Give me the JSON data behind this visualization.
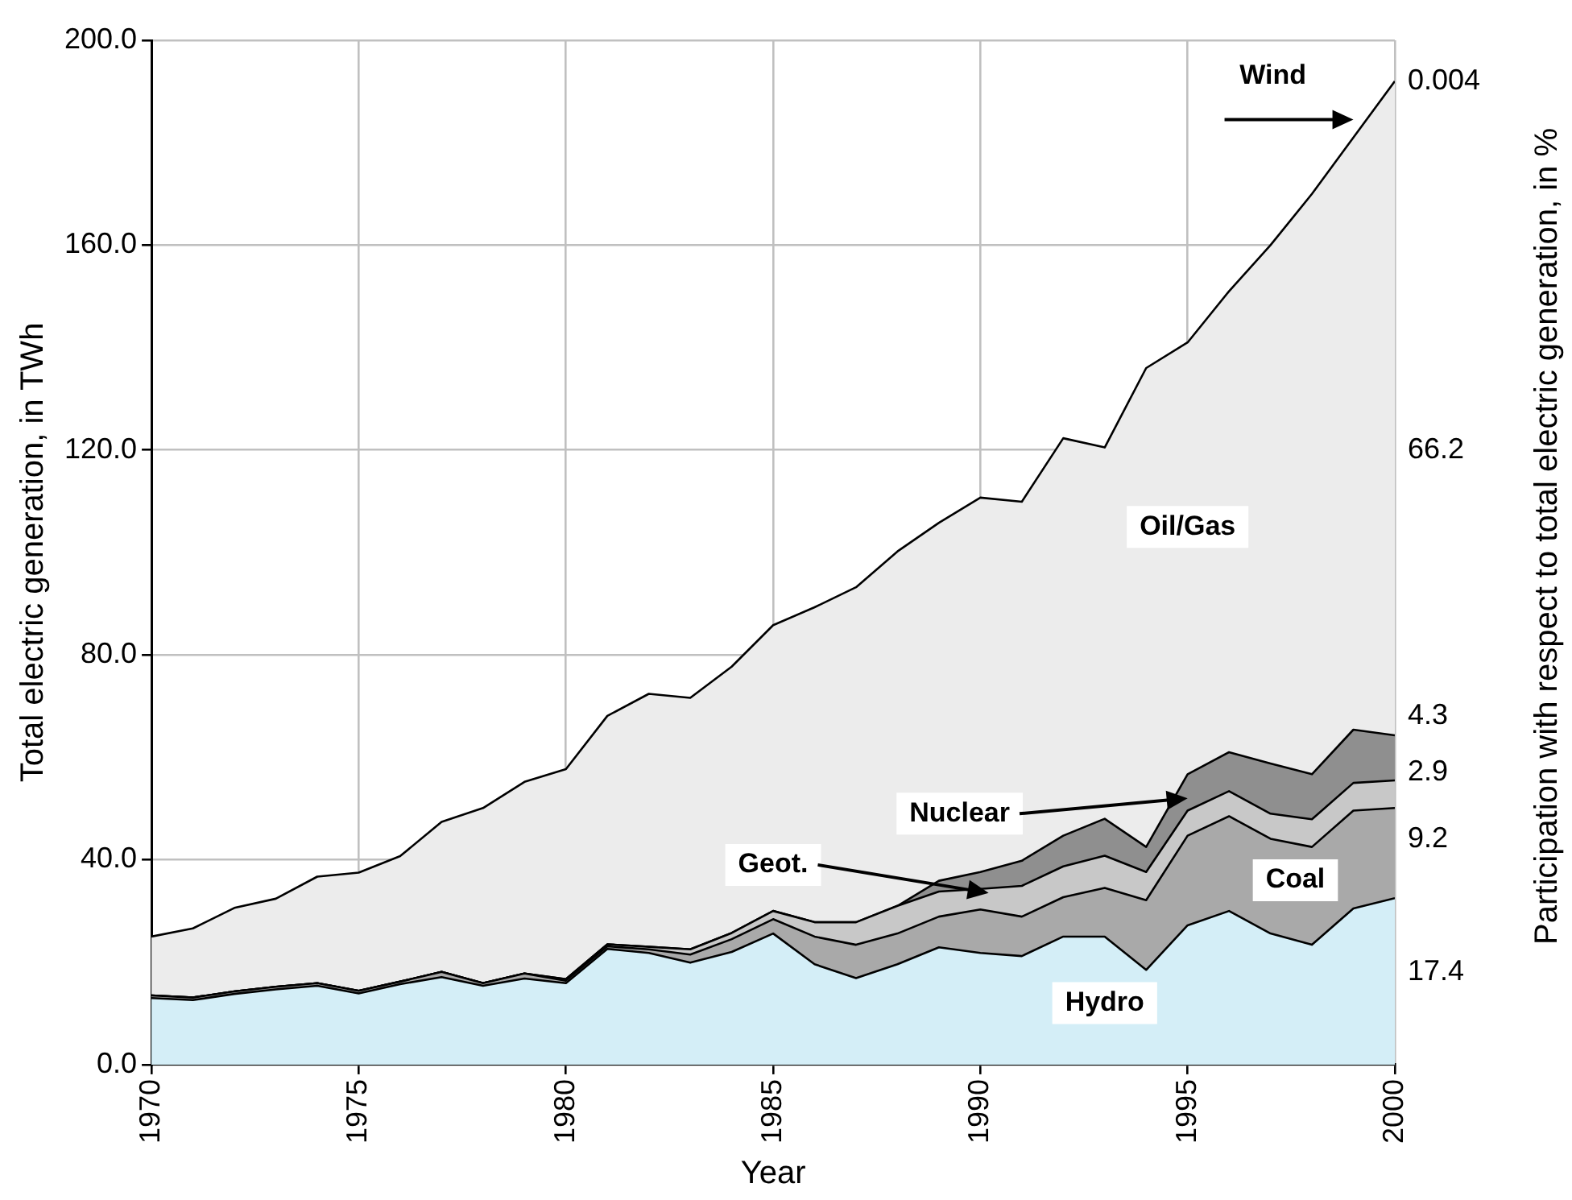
{
  "chart_data": {
    "type": "area",
    "stacked": true,
    "xlabel": "Year",
    "ylabel": "Total electric generation, in TWh",
    "y2label": "Participation with respect to total electric generation, in %",
    "x": [
      1970,
      1971,
      1972,
      1973,
      1974,
      1975,
      1976,
      1977,
      1978,
      1979,
      1980,
      1981,
      1982,
      1983,
      1984,
      1985,
      1986,
      1987,
      1988,
      1989,
      1990,
      1991,
      1992,
      1993,
      1994,
      1995,
      1996,
      1997,
      1998,
      1999,
      2000
    ],
    "xlim": [
      1970,
      2000
    ],
    "xticks": [
      1970,
      1975,
      1980,
      1985,
      1990,
      1995,
      2000
    ],
    "ylim": [
      0,
      200
    ],
    "yticks": [
      {
        "value": 0,
        "label": "0.0"
      },
      {
        "value": 40,
        "label": "40.0"
      },
      {
        "value": 80,
        "label": "80.0"
      },
      {
        "value": 120,
        "label": "120.0"
      },
      {
        "value": 160,
        "label": "160.0"
      },
      {
        "value": 200,
        "label": "200.0"
      }
    ],
    "grid": true,
    "series": [
      {
        "name": "Hydro",
        "color": "#d4eef7",
        "values": [
          13.0,
          12.6,
          13.8,
          14.7,
          15.4,
          13.9,
          15.7,
          17.1,
          15.4,
          16.8,
          15.9,
          22.6,
          21.8,
          19.9,
          22.0,
          25.6,
          19.6,
          16.9,
          19.6,
          22.9,
          21.8,
          21.2,
          25.0,
          25.0,
          18.5,
          27.2,
          30.0,
          25.6,
          23.4,
          30.5,
          32.5
        ]
      },
      {
        "name": "Coal",
        "color": "#a9a9a9",
        "values": [
          0.5,
          0.5,
          0.5,
          0.5,
          0.5,
          0.5,
          0.5,
          1.0,
          0.5,
          1.0,
          0.5,
          0.5,
          0.7,
          1.6,
          2.5,
          2.8,
          5.4,
          6.5,
          6.0,
          6.0,
          8.5,
          7.7,
          7.7,
          9.5,
          13.6,
          17.5,
          18.5,
          18.5,
          19.1,
          19.1,
          17.6
        ]
      },
      {
        "name": "Geot.",
        "color": "#c8c8c8",
        "values": [
          0,
          0,
          0,
          0,
          0,
          0,
          0,
          0,
          0,
          0,
          0.3,
          0.4,
          0.5,
          1.0,
          1.2,
          1.6,
          2.8,
          4.4,
          5.4,
          4.9,
          4.0,
          6.0,
          6.0,
          6.3,
          5.5,
          4.9,
          4.9,
          4.9,
          5.4,
          5.4,
          5.4
        ]
      },
      {
        "name": "Nuclear",
        "color": "#8f8f8f",
        "values": [
          0,
          0,
          0,
          0,
          0,
          0,
          0,
          0,
          0,
          0,
          0,
          0,
          0,
          0,
          0,
          0,
          0,
          0,
          0,
          2.1,
          3.3,
          4.9,
          6.0,
          7.2,
          4.9,
          7.1,
          7.6,
          9.8,
          8.8,
          10.4,
          8.8
        ]
      },
      {
        "name": "Oil/Gas",
        "color": "#ececec",
        "values": [
          11.5,
          13.5,
          16.3,
          17.2,
          20.8,
          23.1,
          24.5,
          29.3,
          34.2,
          37.4,
          41.0,
          44.6,
          49.4,
          49.1,
          52.0,
          55.8,
          61.5,
          65.4,
          69.2,
          69.9,
          73.1,
          70.1,
          77.6,
          72.5,
          93.5,
          84.3,
          90.0,
          101.2,
          113.3,
          115.6,
          127.7
        ]
      }
    ],
    "annotations": [
      "Wind",
      "0.004",
      "66.2",
      "4.3",
      "2.9",
      "9.2",
      "17.4"
    ]
  }
}
